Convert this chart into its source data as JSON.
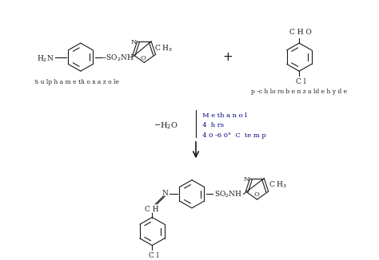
{
  "background_color": "#ffffff",
  "text_color": "#1a1a1a",
  "blue_text_color": "#000080",
  "reactant1_name": "S u lp h a m e th o x a z o le",
  "reactant2_name": "p -c h lo ro b e n z a ld e h y d e",
  "reaction_conditions": [
    "M e th a n o l",
    "4  h rs",
    "4 0 -6 0°  C  te m p"
  ],
  "reaction_side": "—H₂O",
  "figsize": [
    4.74,
    3.26
  ],
  "dpi": 100
}
